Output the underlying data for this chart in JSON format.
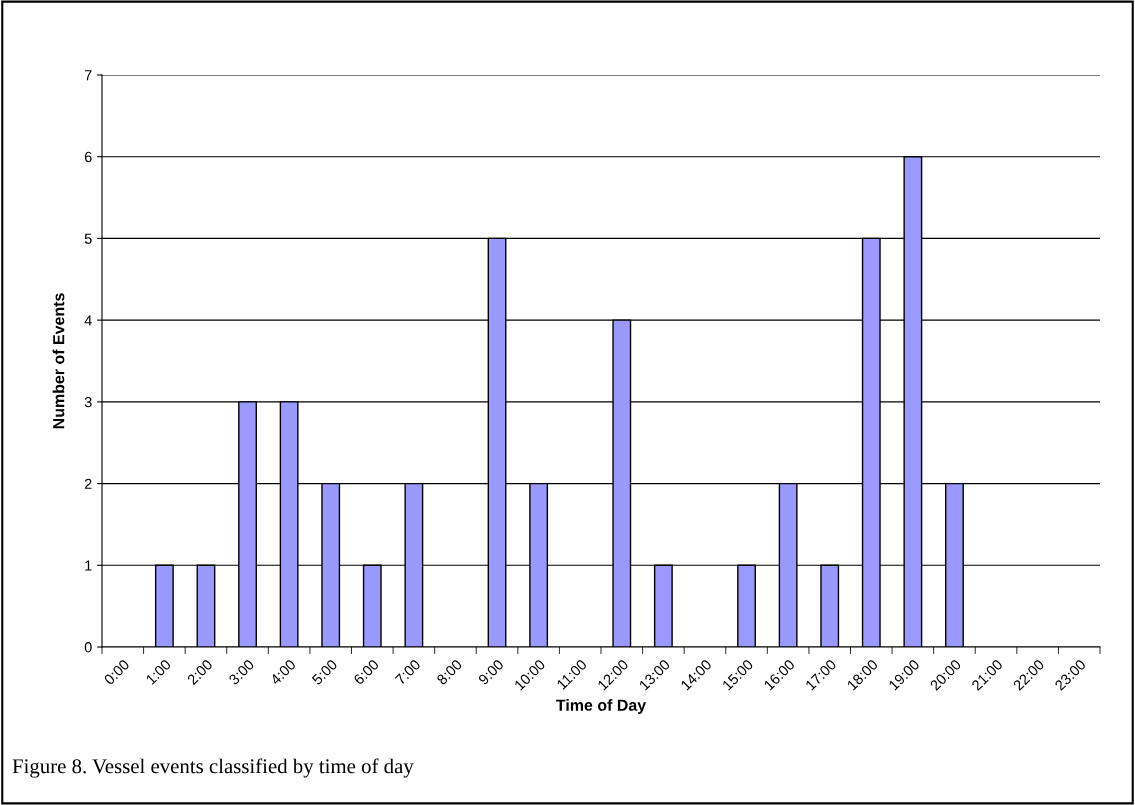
{
  "chart_data": {
    "type": "bar",
    "xlabel": "Time of Day",
    "ylabel": "Number of Events",
    "categories": [
      "0:00",
      "1:00",
      "2:00",
      "3:00",
      "4:00",
      "5:00",
      "6:00",
      "7:00",
      "8:00",
      "9:00",
      "10:00",
      "11:00",
      "12:00",
      "13:00",
      "14:00",
      "15:00",
      "16:00",
      "17:00",
      "18:00",
      "19:00",
      "20:00",
      "21:00",
      "22:00",
      "23:00"
    ],
    "values": [
      0,
      1,
      1,
      3,
      3,
      2,
      1,
      2,
      0,
      5,
      2,
      0,
      4,
      1,
      0,
      1,
      2,
      1,
      5,
      6,
      2,
      0,
      0,
      0
    ],
    "color": "#9999ff",
    "ylim": [
      0,
      7
    ],
    "yticks": [
      0,
      1,
      2,
      3,
      4,
      5,
      6,
      7
    ],
    "grid": "y",
    "legend": false,
    "annotations": [
      "Figure 8. Vessel events classified by time of day"
    ]
  }
}
